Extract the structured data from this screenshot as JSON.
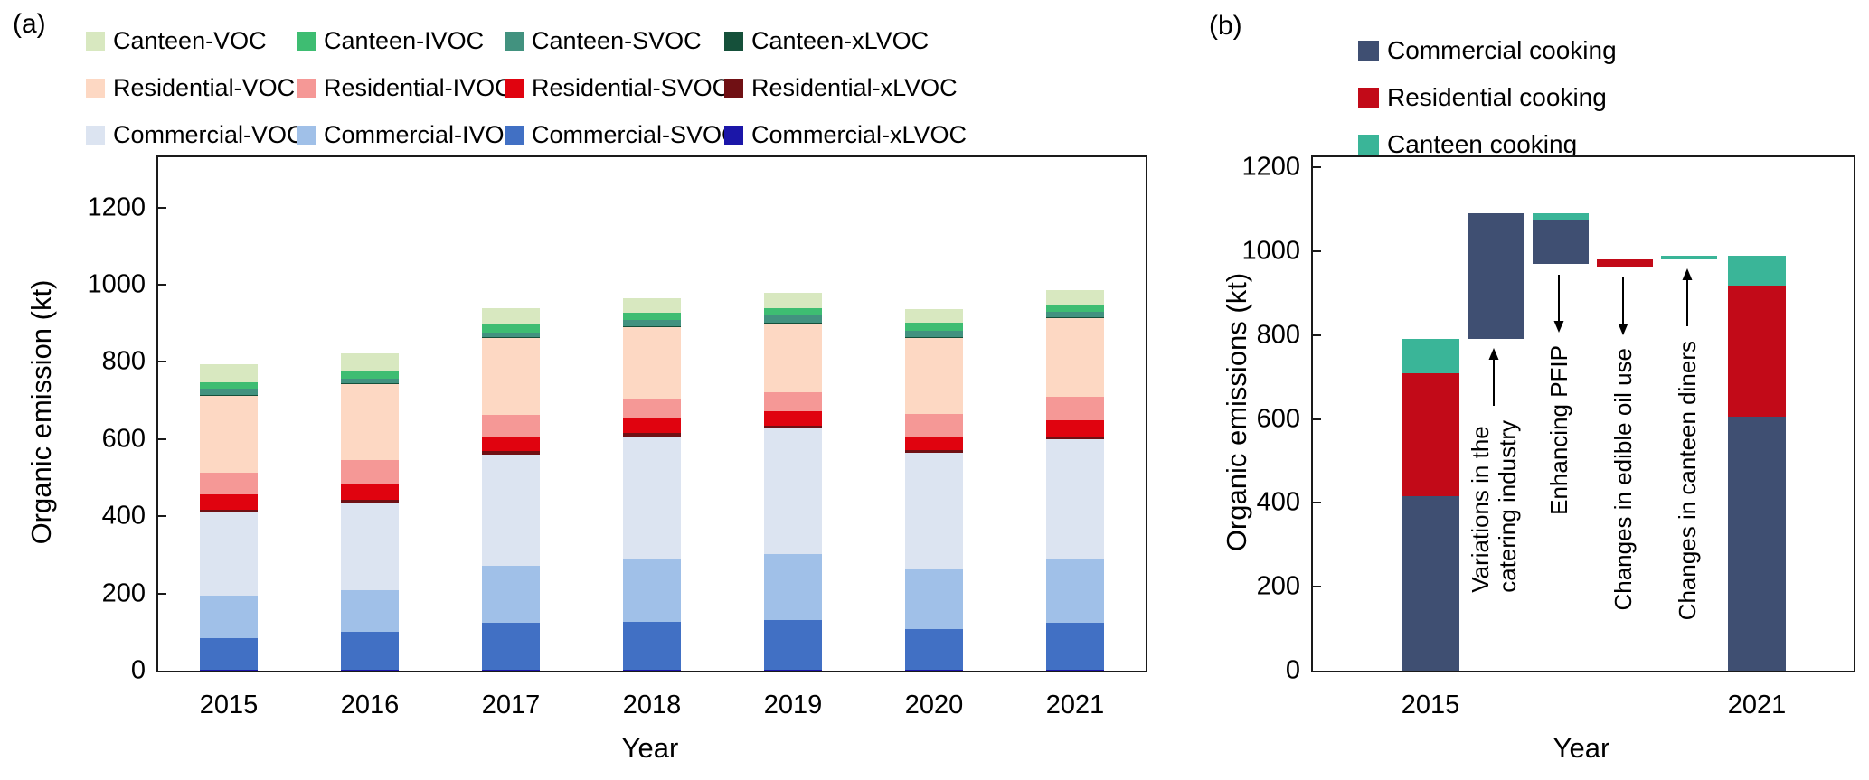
{
  "figure": {
    "panel_a": {
      "label": "(a)",
      "y_axis_title": "Organic emission (kt)",
      "x_axis_title": "Year",
      "ticks": [
        0,
        200,
        400,
        600,
        800,
        1000,
        1200
      ]
    },
    "panel_b": {
      "label": "(b)",
      "y_axis_title": "Organic emissions (kt)",
      "x_axis_title": "Year",
      "ticks": [
        0,
        200,
        400,
        600,
        800,
        1000,
        1200
      ]
    }
  },
  "colors": {
    "Canteen-VOC": "#d8e8c0",
    "Canteen-IVOC": "#3ebd72",
    "Canteen-SVOC": "#42927f",
    "Canteen-xLVOC": "#15503a",
    "Residential-VOC": "#fdd8c3",
    "Residential-IVOC": "#f59896",
    "Residential-SVOC": "#e0030f",
    "Residential-xLVOC": "#701014",
    "Commercial-VOC": "#dce4f1",
    "Commercial-IVOC": "#a0c0e8",
    "Commercial-SVOC": "#4170c4",
    "Commercial-xLVOC": "#1b16a8",
    "commercial": "#3f4f72",
    "residential": "#c20a18",
    "canteen": "#3ab598"
  },
  "chart_data": [
    {
      "type": "bar",
      "subtype": "stacked",
      "panel": "a",
      "xlabel": "Year",
      "ylabel": "Organic emission (kt)",
      "ylim": [
        0,
        1200
      ],
      "grid": false,
      "categories": [
        "2015",
        "2016",
        "2017",
        "2018",
        "2019",
        "2020",
        "2021"
      ],
      "series": [
        {
          "name": "Commercial-xLVOC",
          "values": [
            2,
            2,
            2,
            2,
            2,
            2,
            2
          ]
        },
        {
          "name": "Commercial-SVOC",
          "values": [
            83,
            99,
            122,
            125,
            130,
            106,
            123
          ]
        },
        {
          "name": "Commercial-IVOC",
          "values": [
            110,
            108,
            148,
            164,
            170,
            156,
            166
          ]
        },
        {
          "name": "Commercial-VOC",
          "values": [
            214,
            227,
            288,
            316,
            325,
            300,
            309
          ]
        },
        {
          "name": "Residential-xLVOC",
          "values": [
            8,
            7,
            9,
            9,
            7,
            7,
            7
          ]
        },
        {
          "name": "Residential-SVOC",
          "values": [
            39,
            40,
            38,
            38,
            38,
            36,
            42
          ]
        },
        {
          "name": "Residential-IVOC",
          "values": [
            58,
            62,
            56,
            52,
            49,
            58,
            60
          ]
        },
        {
          "name": "Residential-VOC",
          "values": [
            199,
            197,
            199,
            185,
            178,
            197,
            204
          ]
        },
        {
          "name": "Canteen-xLVOC",
          "values": [
            2,
            2,
            2,
            2,
            2,
            2,
            2
          ]
        },
        {
          "name": "Canteen-SVOC",
          "values": [
            15,
            12,
            12,
            16,
            19,
            17,
            14
          ]
        },
        {
          "name": "Canteen-IVOC",
          "values": [
            18,
            19,
            21,
            19,
            19,
            21,
            19
          ]
        },
        {
          "name": "Canteen-VOC",
          "values": [
            45,
            47,
            42,
            37,
            39,
            35,
            39
          ]
        }
      ],
      "totals": [
        793,
        822,
        939,
        965,
        978,
        937,
        987
      ],
      "legend_order": [
        "Canteen-VOC",
        "Canteen-IVOC",
        "Canteen-SVOC",
        "Canteen-xLVOC",
        "Residential-VOC",
        "Residential-IVOC",
        "Residential-SVOC",
        "Residential-xLVOC",
        "Commercial-VOC",
        "Commercial-IVOC",
        "Commercial-SVOC",
        "Commercial-xLVOC"
      ],
      "legend_position": "top"
    },
    {
      "type": "bar",
      "subtype": "waterfall",
      "panel": "b",
      "xlabel": "Year",
      "ylabel": "Organic emissions (kt)",
      "ylim": [
        0,
        1200
      ],
      "grid": false,
      "legend": [
        {
          "label": "Commercial cooking",
          "key": "commercial"
        },
        {
          "label": "Residential cooking",
          "key": "residential"
        },
        {
          "label": "Canteen cooking",
          "key": "canteen"
        }
      ],
      "legend_position": "top-right",
      "bars": [
        {
          "x_label": "2015",
          "segments": [
            {
              "from": 0,
              "to": 415,
              "key": "commercial"
            },
            {
              "from": 415,
              "to": 710,
              "key": "residential"
            },
            {
              "from": 710,
              "to": 790,
              "key": "canteen"
            }
          ]
        },
        {
          "segments": [
            {
              "from": 790,
              "to": 1090,
              "key": "commercial"
            }
          ],
          "annotation": {
            "text": "Variations in the\ncatering industry",
            "arrow": "up"
          }
        },
        {
          "segments": [
            {
              "from": 970,
              "to": 1075,
              "key": "commercial"
            },
            {
              "from": 1075,
              "to": 1090,
              "key": "canteen"
            }
          ],
          "annotation": {
            "text": "Enhancing PFIP",
            "arrow": "down"
          }
        },
        {
          "segments": [
            {
              "from": 963,
              "to": 980,
              "key": "residential"
            }
          ],
          "annotation": {
            "text": "Changes in edible oil use",
            "arrow": "down"
          }
        },
        {
          "segments": [
            {
              "from": 980,
              "to": 990,
              "key": "canteen"
            }
          ],
          "annotation": {
            "text": "Changes in canteen diners",
            "arrow": "up"
          }
        },
        {
          "x_label": "2021",
          "segments": [
            {
              "from": 0,
              "to": 605,
              "key": "commercial"
            },
            {
              "from": 605,
              "to": 918,
              "key": "residential"
            },
            {
              "from": 918,
              "to": 990,
              "key": "canteen"
            }
          ]
        }
      ]
    }
  ]
}
